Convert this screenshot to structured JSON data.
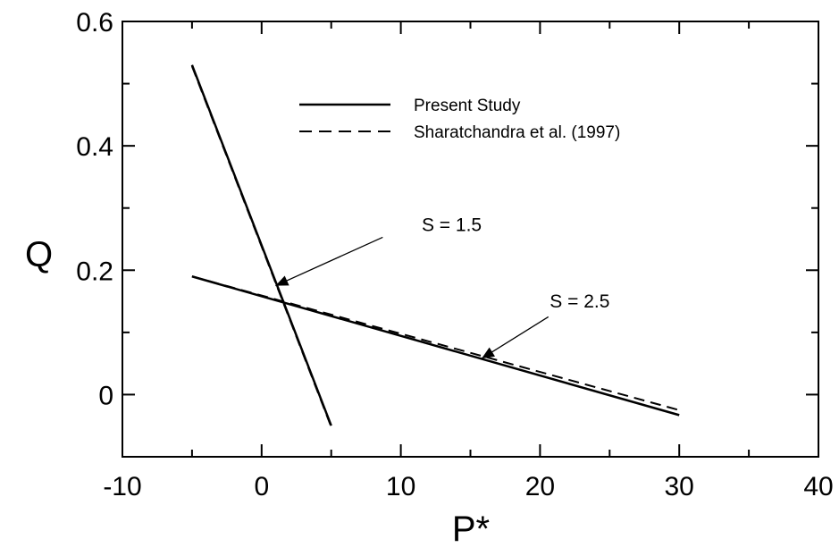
{
  "chart_data": {
    "type": "line",
    "xlabel": "P*",
    "ylabel": "Q",
    "xlim": [
      -10,
      40
    ],
    "ylim": [
      -0.1,
      0.6
    ],
    "x_ticks": [
      -10,
      0,
      10,
      20,
      30,
      40
    ],
    "x_tick_labels": [
      "-10",
      "0",
      "10",
      "20",
      "30",
      "40"
    ],
    "y_ticks": [
      0,
      0.2,
      0.4,
      0.6
    ],
    "y_tick_labels": [
      "0",
      "0.2",
      "0.4",
      "0.6"
    ],
    "grid": false,
    "legend_position": "top-center",
    "series": [
      {
        "name": "Present Study",
        "style": "solid",
        "color": "#000000",
        "curves": [
          {
            "x": [
              -5,
              5
            ],
            "y": [
              0.53,
              -0.05
            ]
          },
          {
            "x": [
              -5,
              30
            ],
            "y": [
              0.19,
              -0.033
            ]
          }
        ]
      },
      {
        "name": "Sharatchandra et al. (1997)",
        "style": "dashed",
        "color": "#000000",
        "curves": [
          {
            "x": [
              -5,
              5
            ],
            "y": [
              0.528,
              -0.052
            ]
          },
          {
            "x": [
              -5,
              30
            ],
            "y": [
              0.19,
              -0.025
            ]
          }
        ]
      }
    ],
    "annotations": [
      {
        "text": "S = 1.5",
        "text_at": [
          11.5,
          0.263
        ],
        "arrow_from": [
          8.7,
          0.253
        ],
        "arrow_to": [
          1.0,
          0.175
        ]
      },
      {
        "text": "S = 2.5",
        "text_at": [
          20.7,
          0.14
        ],
        "arrow_from": [
          20.6,
          0.125
        ],
        "arrow_to": [
          15.8,
          0.058
        ]
      }
    ]
  }
}
